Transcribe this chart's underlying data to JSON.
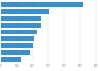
{
  "values": [
    517,
    305,
    255,
    250,
    225,
    210,
    200,
    185,
    125
  ],
  "bar_color": "#3a8fcd",
  "background_color": "#ffffff",
  "plot_bg": "#f0f0f0",
  "xlim": [
    0,
    620
  ],
  "figsize": [
    1.0,
    0.71
  ],
  "dpi": 100,
  "bar_height": 0.72,
  "tick_vals": [
    0,
    100,
    200,
    300,
    400,
    500,
    600
  ]
}
